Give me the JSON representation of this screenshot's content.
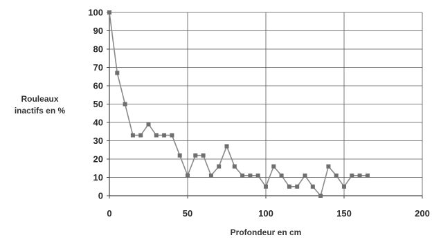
{
  "chart_data": {
    "type": "line",
    "title": "",
    "xlabel": "Profondeur en cm",
    "ylabel_lines": [
      "Rouleaux",
      "inactifs en %"
    ],
    "xlim": [
      0,
      200
    ],
    "ylim": [
      0,
      100
    ],
    "xticks": [
      "0",
      "50",
      "100",
      "150",
      "200"
    ],
    "yticks": [
      "0",
      "10",
      "20",
      "30",
      "40",
      "50",
      "60",
      "70",
      "80",
      "90",
      "100"
    ],
    "grid": true,
    "colors": {
      "line": "#8a8a8a",
      "marker": "#6f6f6f",
      "grid": "#555555",
      "axis": "#444444"
    },
    "series": [
      {
        "x": [
          0,
          5,
          10,
          15,
          20,
          25,
          30,
          35,
          40,
          45,
          50,
          55,
          60,
          65,
          70,
          75,
          80,
          85,
          90,
          95,
          100,
          105,
          110,
          115,
          120,
          125,
          130,
          135,
          140,
          145,
          150,
          155,
          160,
          165
        ],
        "values": [
          100,
          67,
          50,
          33,
          33,
          39,
          33,
          33,
          33,
          22,
          11,
          22,
          22,
          11,
          16,
          27,
          16,
          11,
          11,
          11,
          5,
          16,
          11,
          5,
          5,
          11,
          5,
          0,
          16,
          11,
          5,
          11,
          11,
          11
        ]
      }
    ]
  }
}
